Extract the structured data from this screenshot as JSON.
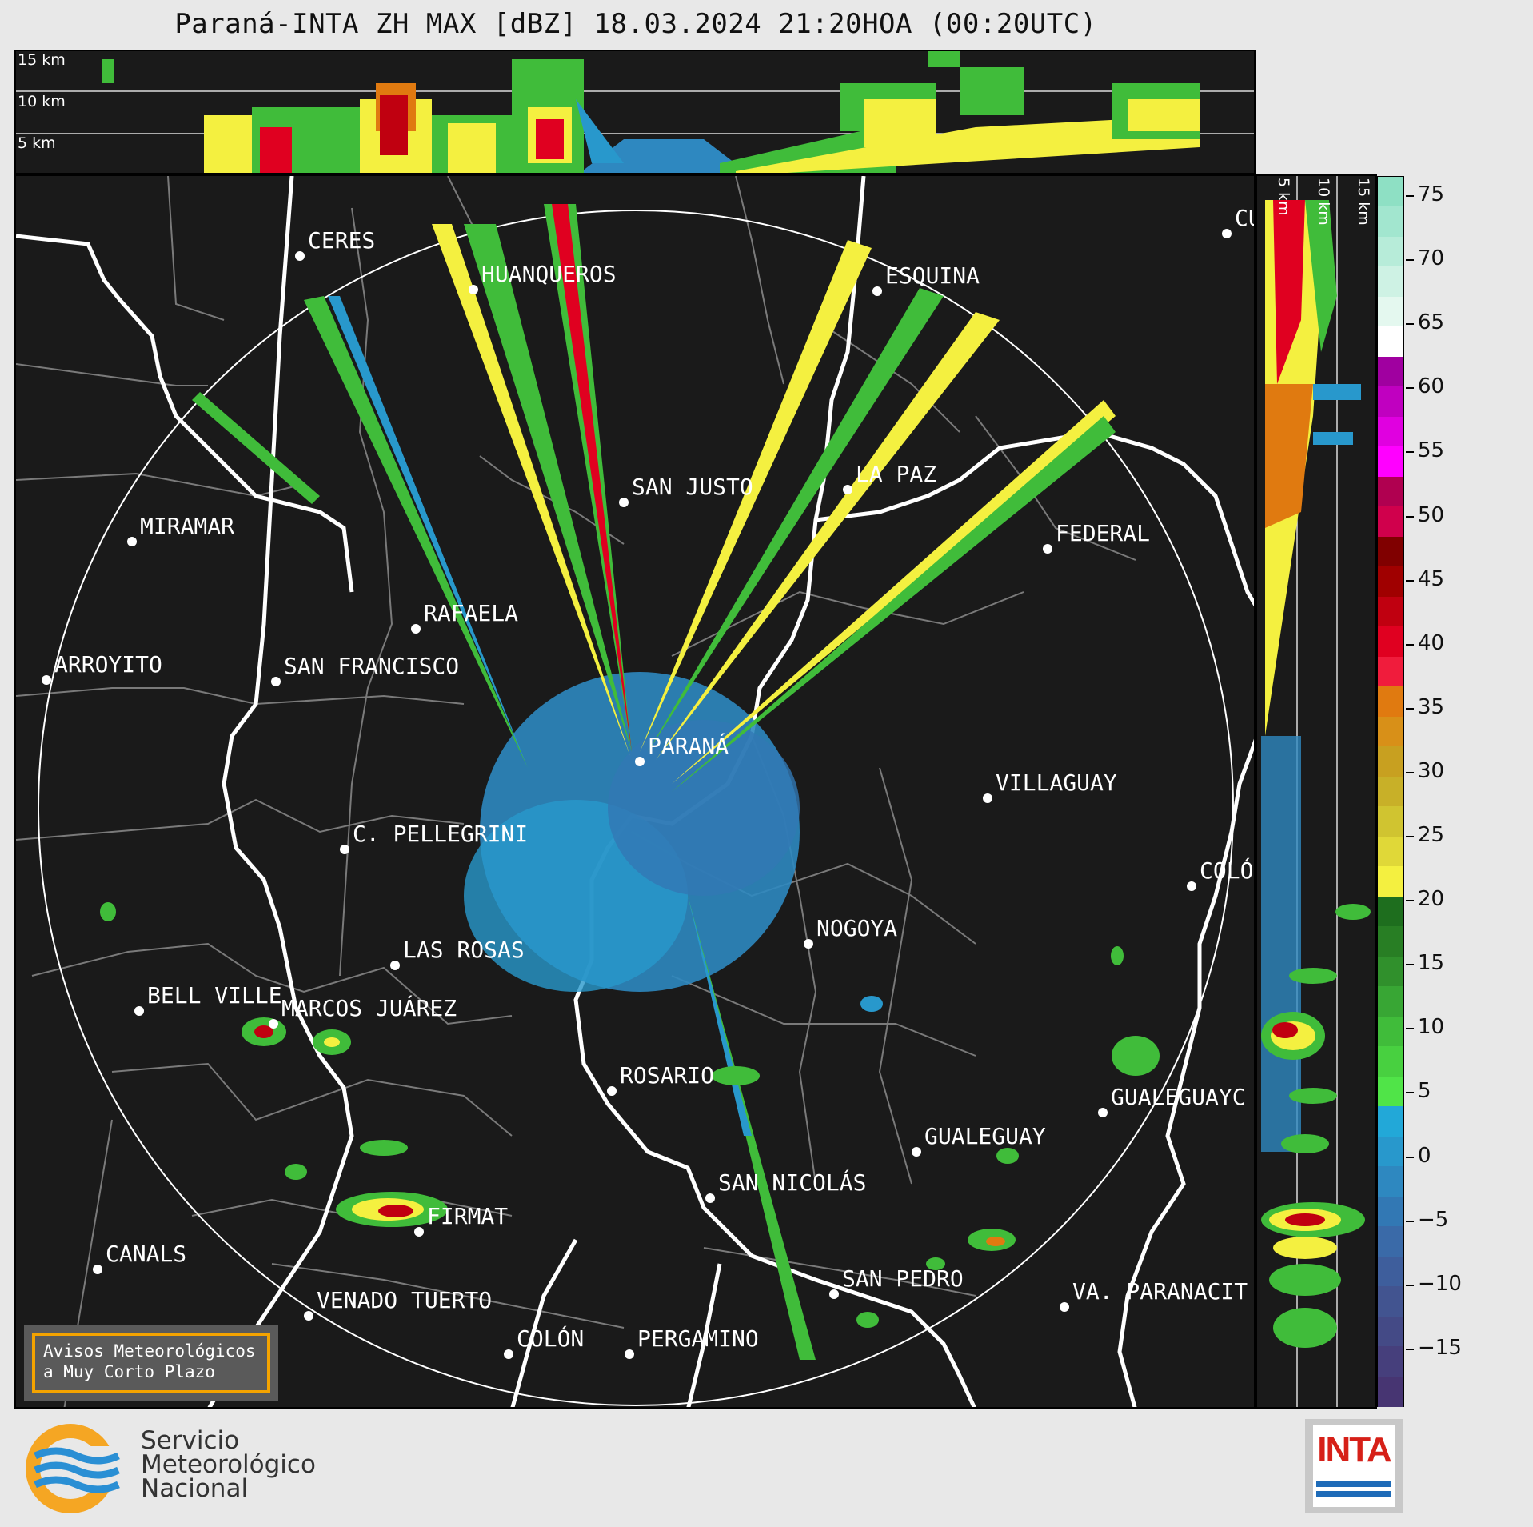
{
  "title": "Paraná-INTA ZH MAX [dBZ] 18.03.2024 21:20HOA (00:20UTC)",
  "height_labels": {
    "h15": "15 km",
    "h10": "10 km",
    "h5": "5 km"
  },
  "colorbar": {
    "ticks": [
      "75",
      "70",
      "65",
      "60",
      "55",
      "50",
      "45",
      "40",
      "35",
      "30",
      "25",
      "20",
      "15",
      "10",
      "5",
      "0",
      "−5",
      "−10",
      "−15"
    ],
    "colors": [
      "#8ee0c4",
      "#a2e6cf",
      "#b7ecd9",
      "#cef2e4",
      "#e4f8ef",
      "#ffffff",
      "#a000a0",
      "#c000c0",
      "#e000e0",
      "#ff00ff",
      "#b00050",
      "#d0004c",
      "#800000",
      "#a00000",
      "#c00010",
      "#e00020",
      "#f01c3c",
      "#e07a10",
      "#d89018",
      "#c8a020",
      "#c8b028",
      "#d0c430",
      "#e0d838",
      "#f4f040",
      "#1e6e1e",
      "#287e24",
      "#30902c",
      "#38a634",
      "#40bc3a",
      "#48d040",
      "#50e448",
      "#22a8d8",
      "#2898cc",
      "#2e88c0",
      "#3278b4",
      "#3a6aa8",
      "#3e5e9c",
      "#425490",
      "#444a86",
      "#463f7c",
      "#473572"
    ]
  },
  "cities": [
    {
      "name": "CERES"
    },
    {
      "name": "HUANQUEROS"
    },
    {
      "name": "ESQUINA"
    },
    {
      "name": "CU"
    },
    {
      "name": "LA PAZ"
    },
    {
      "name": "SAN JUSTO"
    },
    {
      "name": "MIRAMAR"
    },
    {
      "name": "FEDERAL"
    },
    {
      "name": "RAFAELA"
    },
    {
      "name": "ARROYITO"
    },
    {
      "name": "SAN FRANCISCO"
    },
    {
      "name": "PARANÁ"
    },
    {
      "name": "VILLAGUAY"
    },
    {
      "name": "C. PELLEGRINI"
    },
    {
      "name": "COLÓ"
    },
    {
      "name": "NOGOYA"
    },
    {
      "name": "LAS ROSAS"
    },
    {
      "name": "BELL VILLE"
    },
    {
      "name": "MARCOS JUÁREZ"
    },
    {
      "name": "ROSARIO"
    },
    {
      "name": "GUALEGUAYC"
    },
    {
      "name": "GUALEGUAY"
    },
    {
      "name": "SAN NICOLÁS"
    },
    {
      "name": "FIRMAT"
    },
    {
      "name": "CANALS"
    },
    {
      "name": "SAN PEDRO"
    },
    {
      "name": "VA. PARANACIT"
    },
    {
      "name": "VENADO TUERTO"
    },
    {
      "name": "COLÓN"
    },
    {
      "name": "PERGAMINO"
    }
  ],
  "notice": {
    "line1": "Avisos Meteorológicos",
    "line2": "a Muy Corto Plazo"
  },
  "smn": {
    "line1": "Servicio",
    "line2": "Meteorológico",
    "line3": "Nacional"
  },
  "inta": {
    "text": "INTA"
  }
}
